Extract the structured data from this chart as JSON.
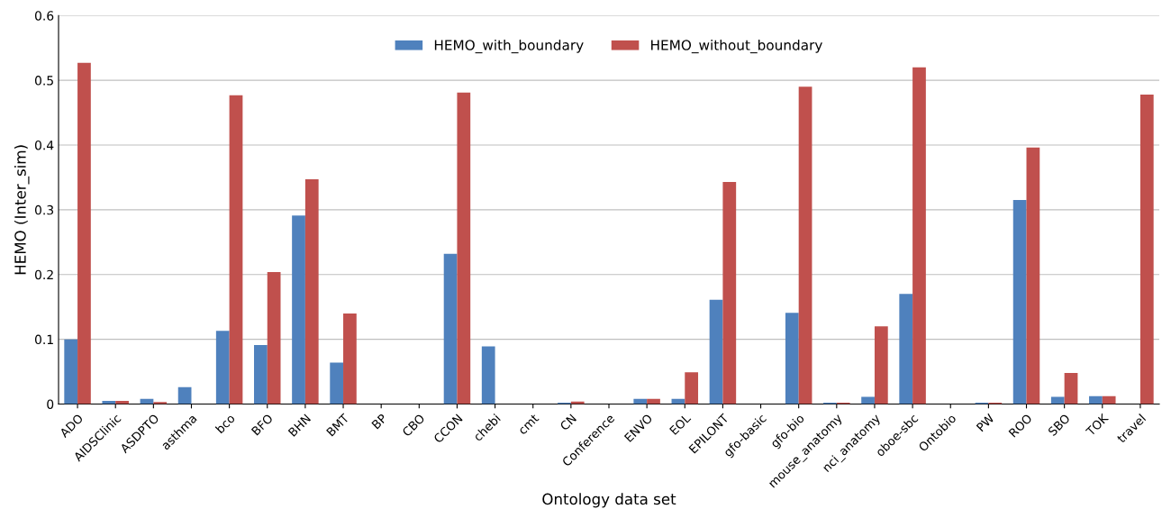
{
  "chart_data": {
    "type": "bar",
    "xlabel": "Ontology data set",
    "ylabel": "HEMO (Inter_sim)",
    "categories": [
      "ADO",
      "AIDSClinic",
      "ASDPTO",
      "asthma",
      "bco",
      "BFO",
      "BHN",
      "BMT",
      "BP",
      "CBO",
      "CCON",
      "chebi",
      "cmt",
      "CN",
      "Conference",
      "ENVO",
      "EOL",
      "EPILONT",
      "gfo-basic",
      "gfo-bio",
      "mouse_anatomy",
      "nci_anatomy",
      "oboe-sbc",
      "Ontobio",
      "PW",
      "ROO",
      "SBO",
      "TOK",
      "travel"
    ],
    "series": [
      {
        "name": "HEMO_with_boundary",
        "color": "#4f81bd",
        "values": [
          0.1,
          0.005,
          0.008,
          0.026,
          0.113,
          0.091,
          0.291,
          0.064,
          0,
          0,
          0.232,
          0.089,
          0,
          0.002,
          0,
          0.008,
          0.008,
          0.161,
          0,
          0.141,
          0.002,
          0.011,
          0.17,
          0,
          0.002,
          0.315,
          0.011,
          0.012,
          0
        ]
      },
      {
        "name": "HEMO_without_boundary",
        "color": "#c0504d",
        "values": [
          0.527,
          0.005,
          0.003,
          0,
          0.477,
          0.204,
          0.347,
          0.14,
          0,
          0,
          0.481,
          0,
          0,
          0.004,
          0,
          0.008,
          0.049,
          0.343,
          0,
          0.49,
          0.002,
          0.12,
          0.52,
          0,
          0.002,
          0.396,
          0.048,
          0.012,
          0.478
        ]
      }
    ],
    "ylim": [
      0,
      0.6
    ],
    "yticks": [
      {
        "value": 0,
        "label": "0"
      },
      0.1,
      0.2,
      0.3,
      0.4,
      0.5,
      0.6
    ],
    "grid": "y",
    "legend": "top"
  }
}
